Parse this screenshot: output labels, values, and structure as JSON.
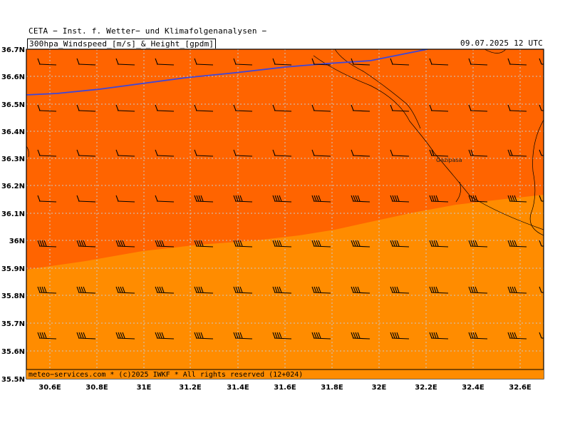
{
  "header": {
    "line1": "CETA − Inst. f. Wetter− und Klimafolgenanalysen −",
    "line2": "300hpa_Windspeed_[m/s]_&_Height_[gpdm]",
    "datetime": "09.07.2025  12  UTC"
  },
  "footer": {
    "credit": "meteo−services.com * (c)2025 IWKF * All rights reserved (12+024)"
  },
  "map": {
    "lat_labels": [
      "35.5N",
      "35.6N",
      "35.7N",
      "35.8N",
      "35.9N",
      "36N",
      "36.1N",
      "36.2N",
      "36.3N",
      "36.4N",
      "36.5N",
      "36.6N",
      "36.7N"
    ],
    "lon_labels": [
      "30.6E",
      "30.8E",
      "31E",
      "31.2E",
      "31.4E",
      "31.6E",
      "31.8E",
      "32E",
      "32.2E",
      "32.4E",
      "32.6E"
    ],
    "city": "Gazipasa",
    "colors": {
      "wind_zone_north": "#ff6400",
      "wind_zone_south": "#ff8c00",
      "height_contour": "#3c46dc",
      "grid": "#c8c8c8",
      "coastline": "#000000"
    }
  }
}
